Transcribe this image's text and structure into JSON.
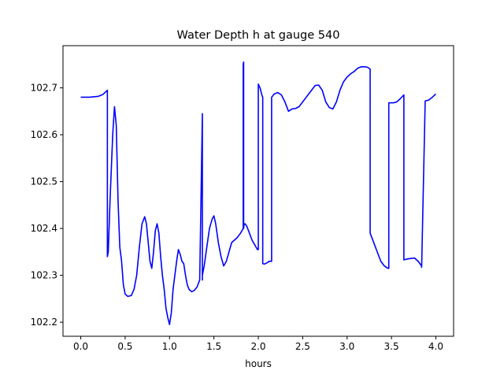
{
  "chart_data": {
    "type": "line",
    "title": "Water Depth h at gauge 540",
    "xlabel": "hours",
    "ylabel": "",
    "xlim": [
      -0.2,
      4.2
    ],
    "ylim": [
      102.17,
      102.79
    ],
    "grid": false,
    "line_color": "#0000ff",
    "xticks": [
      0.0,
      0.5,
      1.0,
      1.5,
      2.0,
      2.5,
      3.0,
      3.5,
      4.0
    ],
    "xtick_labels": [
      "0.0",
      "0.5",
      "1.0",
      "1.5",
      "2.0",
      "2.5",
      "3.0",
      "3.5",
      "4.0"
    ],
    "yticks": [
      102.2,
      102.3,
      102.4,
      102.5,
      102.6,
      102.7
    ],
    "ytick_labels": [
      "102.2",
      "102.3",
      "102.4",
      "102.5",
      "102.6",
      "102.7"
    ],
    "series": [
      {
        "x": [
          0.0,
          0.1,
          0.2,
          0.25,
          0.3,
          0.3,
          0.31,
          0.33,
          0.36,
          0.38,
          0.4,
          0.42,
          0.44,
          0.46,
          0.48,
          0.5,
          0.53,
          0.57,
          0.6,
          0.63,
          0.66,
          0.69,
          0.72,
          0.74,
          0.76,
          0.78,
          0.8,
          0.82,
          0.84,
          0.86,
          0.88,
          0.9,
          0.92,
          0.94,
          0.96,
          0.98,
          1.0,
          1.02,
          1.04,
          1.06,
          1.08,
          1.1,
          1.12,
          1.14,
          1.16,
          1.18,
          1.2,
          1.22,
          1.25,
          1.28,
          1.31,
          1.34,
          1.37,
          1.37,
          1.37,
          1.39,
          1.42,
          1.45,
          1.48,
          1.5,
          1.52,
          1.55,
          1.58,
          1.61,
          1.64,
          1.67,
          1.7,
          1.73,
          1.76,
          1.8,
          1.83,
          1.83,
          1.835,
          1.835,
          1.84,
          1.84,
          1.85,
          1.87,
          1.89,
          1.91,
          1.93,
          1.96,
          1.99,
          2.0,
          2.0,
          2.02,
          2.04,
          2.05,
          2.05,
          2.07,
          2.09,
          2.11,
          2.12,
          2.15,
          2.15,
          2.18,
          2.22,
          2.26,
          2.3,
          2.34,
          2.38,
          2.42,
          2.46,
          2.52,
          2.58,
          2.64,
          2.68,
          2.72,
          2.76,
          2.8,
          2.84,
          2.88,
          2.92,
          2.96,
          3.0,
          3.04,
          3.08,
          3.12,
          3.16,
          3.2,
          3.23,
          3.26,
          3.26,
          3.3,
          3.34,
          3.38,
          3.42,
          3.46,
          3.47,
          3.47,
          3.52,
          3.56,
          3.6,
          3.64,
          3.64,
          3.68,
          3.72,
          3.76,
          3.8,
          3.84,
          3.84,
          3.88,
          3.92,
          3.96,
          4.0
        ],
        "y": [
          102.68,
          102.68,
          102.682,
          102.686,
          102.695,
          102.34,
          102.35,
          102.46,
          102.6,
          102.66,
          102.62,
          102.46,
          102.36,
          102.33,
          102.28,
          102.26,
          102.255,
          102.257,
          102.27,
          102.3,
          102.36,
          102.41,
          102.425,
          102.41,
          102.37,
          102.33,
          102.315,
          102.35,
          102.395,
          102.41,
          102.39,
          102.34,
          102.3,
          102.27,
          102.23,
          102.21,
          102.195,
          102.22,
          102.27,
          102.3,
          102.33,
          102.355,
          102.345,
          102.33,
          102.325,
          102.3,
          102.28,
          102.27,
          102.265,
          102.268,
          102.275,
          102.29,
          102.645,
          102.29,
          102.3,
          102.32,
          102.36,
          102.4,
          102.42,
          102.427,
          102.41,
          102.37,
          102.34,
          102.32,
          102.33,
          102.35,
          102.37,
          102.375,
          102.38,
          102.39,
          102.4,
          102.75,
          102.755,
          102.4,
          102.41,
          102.408,
          102.41,
          102.405,
          102.395,
          102.385,
          102.375,
          102.365,
          102.355,
          102.355,
          102.708,
          102.7,
          102.685,
          102.68,
          102.325,
          102.324,
          102.326,
          102.328,
          102.33,
          102.33,
          102.68,
          102.687,
          102.69,
          102.685,
          102.67,
          102.65,
          102.655,
          102.656,
          102.66,
          102.675,
          102.69,
          102.705,
          102.706,
          102.695,
          102.67,
          102.658,
          102.655,
          102.67,
          102.695,
          102.713,
          102.723,
          102.73,
          102.735,
          102.742,
          102.745,
          102.745,
          102.744,
          102.74,
          102.39,
          102.37,
          102.35,
          102.33,
          102.32,
          102.315,
          102.315,
          102.668,
          102.668,
          102.67,
          102.677,
          102.685,
          102.333,
          102.335,
          102.336,
          102.337,
          102.33,
          102.32,
          102.317,
          102.672,
          102.674,
          102.68,
          102.687
        ]
      }
    ]
  }
}
